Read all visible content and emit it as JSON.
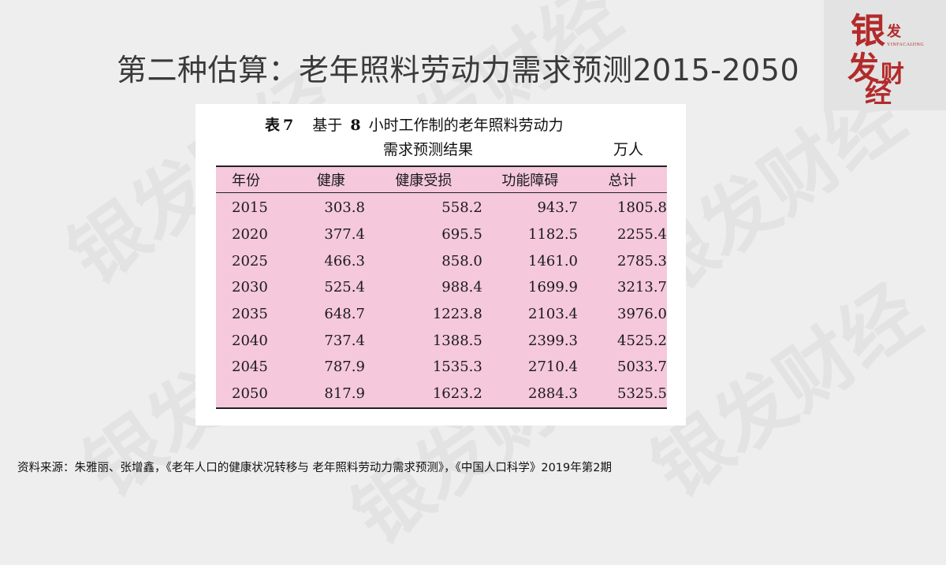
{
  "title": "第二种估算：老年照料劳动力需求预测2015-2050",
  "logo": {
    "text": "银发财经",
    "subtitle": "YINFACAIJING",
    "color": "#b32a2a"
  },
  "watermark_text": "银发财经",
  "table": {
    "caption_label": "表",
    "caption_number": "7",
    "caption_text_prefix": "基于",
    "caption_hours": "8",
    "caption_text_suffix": "小时工作制的老年照料劳动力",
    "caption_line2": "需求预测结果",
    "unit": "万人",
    "highlight_color": "#f5c8dc",
    "columns": [
      "年份",
      "健康",
      "健康受损",
      "功能障碍",
      "总计"
    ],
    "rows": [
      [
        "2015",
        "303.8",
        "558.2",
        "943.7",
        "1805.8"
      ],
      [
        "2020",
        "377.4",
        "695.5",
        "1182.5",
        "2255.4"
      ],
      [
        "2025",
        "466.3",
        "858.0",
        "1461.0",
        "2785.3"
      ],
      [
        "2030",
        "525.4",
        "988.4",
        "1699.9",
        "3213.7"
      ],
      [
        "2035",
        "648.7",
        "1223.8",
        "2103.4",
        "3976.0"
      ],
      [
        "2040",
        "737.4",
        "1388.5",
        "2399.3",
        "4525.2"
      ],
      [
        "2045",
        "787.9",
        "1535.3",
        "2710.4",
        "5033.7"
      ],
      [
        "2050",
        "817.9",
        "1623.2",
        "2884.3",
        "5325.5"
      ]
    ]
  },
  "source": "资料来源：朱雅丽、张增鑫，《老年人口的健康状况转移与 老年照料劳动力需求预测》，《中国人口科学》2019年第2期"
}
